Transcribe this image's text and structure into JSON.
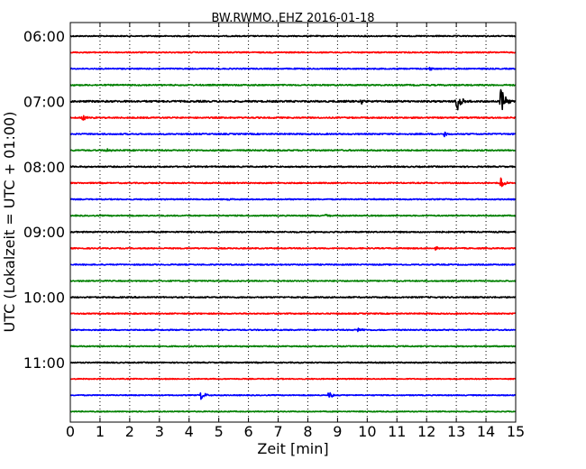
{
  "chart_data": {
    "type": "line",
    "title": "BW.RWMO..EHZ 2016-01-18",
    "xlabel": "Zeit  [min]",
    "ylabel": "UTC (Lokalzeit = UTC + 01:00)",
    "xlim": [
      0,
      15
    ],
    "x_ticks": [
      "0",
      "1",
      "2",
      "3",
      "4",
      "5",
      "6",
      "7",
      "8",
      "9",
      "10",
      "11",
      "12",
      "13",
      "14",
      "15"
    ],
    "y_ticks": [
      {
        "label": "06:00",
        "trace": 0
      },
      {
        "label": "07:00",
        "trace": 4
      },
      {
        "label": "08:00",
        "trace": 8
      },
      {
        "label": "09:00",
        "trace": 12
      },
      {
        "label": "10:00",
        "trace": 16
      },
      {
        "label": "11:00",
        "trace": 20
      }
    ],
    "trace_interval_minutes": 15,
    "start_time": "06:00",
    "grid": "vertical dotted at each minute",
    "trace_colors": [
      "#000000",
      "#ff0000",
      "#0000ff",
      "#008000"
    ],
    "traces": [
      {
        "start": "06:00",
        "color": "#000000",
        "noise": 0.6,
        "events": []
      },
      {
        "start": "06:15",
        "color": "#ff0000",
        "noise": 0.6,
        "events": []
      },
      {
        "start": "06:30",
        "color": "#0000ff",
        "noise": 0.6,
        "events": [
          {
            "t": 12.1,
            "amp": 2
          }
        ]
      },
      {
        "start": "06:45",
        "color": "#008000",
        "noise": 0.7,
        "events": []
      },
      {
        "start": "07:00",
        "color": "#000000",
        "noise": 0.9,
        "events": [
          {
            "t": 9.8,
            "amp": 2.5
          },
          {
            "t": 13.0,
            "amp": 15
          },
          {
            "t": 14.5,
            "amp": 16
          }
        ]
      },
      {
        "start": "07:15",
        "color": "#ff0000",
        "noise": 0.7,
        "events": [
          {
            "t": 0.4,
            "amp": 4
          }
        ]
      },
      {
        "start": "07:30",
        "color": "#0000ff",
        "noise": 0.7,
        "events": [
          {
            "t": 12.6,
            "amp": 3
          }
        ]
      },
      {
        "start": "07:45",
        "color": "#008000",
        "noise": 0.7,
        "events": [
          {
            "t": 1.2,
            "amp": 2
          }
        ]
      },
      {
        "start": "08:00",
        "color": "#000000",
        "noise": 0.7,
        "events": []
      },
      {
        "start": "08:15",
        "color": "#ff0000",
        "noise": 0.6,
        "events": [
          {
            "t": 14.5,
            "amp": 7
          }
        ]
      },
      {
        "start": "08:30",
        "color": "#0000ff",
        "noise": 0.6,
        "events": [
          {
            "t": 5.3,
            "amp": 1.5
          }
        ]
      },
      {
        "start": "08:45",
        "color": "#008000",
        "noise": 0.6,
        "events": [
          {
            "t": 8.6,
            "amp": 2
          }
        ]
      },
      {
        "start": "09:00",
        "color": "#000000",
        "noise": 0.7,
        "events": []
      },
      {
        "start": "09:15",
        "color": "#ff0000",
        "noise": 0.6,
        "events": [
          {
            "t": 12.3,
            "amp": 1.5
          }
        ]
      },
      {
        "start": "09:30",
        "color": "#0000ff",
        "noise": 0.6,
        "events": []
      },
      {
        "start": "09:45",
        "color": "#008000",
        "noise": 0.6,
        "events": []
      },
      {
        "start": "10:00",
        "color": "#000000",
        "noise": 0.7,
        "events": []
      },
      {
        "start": "10:15",
        "color": "#ff0000",
        "noise": 0.6,
        "events": []
      },
      {
        "start": "10:30",
        "color": "#0000ff",
        "noise": 0.6,
        "events": [
          {
            "t": 9.7,
            "amp": 3
          }
        ]
      },
      {
        "start": "10:45",
        "color": "#008000",
        "noise": 0.6,
        "events": []
      },
      {
        "start": "11:00",
        "color": "#000000",
        "noise": 0.6,
        "events": []
      },
      {
        "start": "11:15",
        "color": "#ff0000",
        "noise": 0.5,
        "events": []
      },
      {
        "start": "11:30",
        "color": "#0000ff",
        "noise": 0.5,
        "events": [
          {
            "t": 4.4,
            "amp": 5
          },
          {
            "t": 8.7,
            "amp": 4
          }
        ]
      },
      {
        "start": "11:45",
        "color": "#008000",
        "noise": 0.5,
        "events": []
      }
    ]
  }
}
